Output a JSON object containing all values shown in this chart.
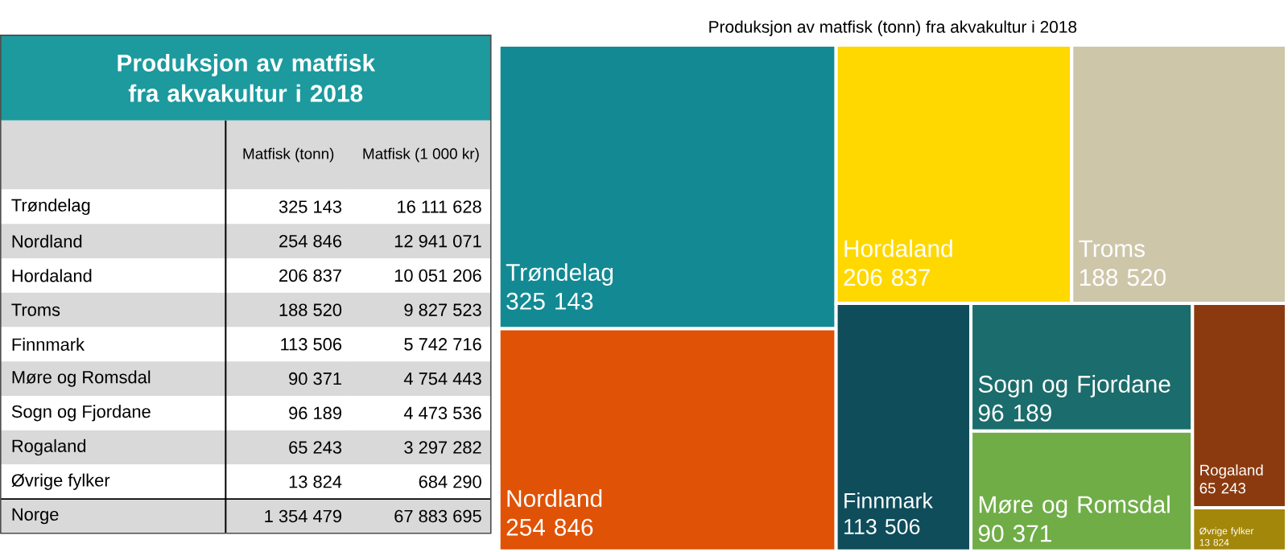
{
  "chart_data": [
    {
      "type": "other",
      "title": "Produksjon av matfisk fra akvakultur i 2018",
      "categories": [
        "Trøndelag",
        "Nordland",
        "Hordaland",
        "Troms",
        "Finnmark",
        "Møre og Romsdal",
        "Sogn og Fjordane",
        "Rogaland",
        "Øvrige fylker",
        "Norge"
      ],
      "series": [
        {
          "name": "Matfisk (tonn)",
          "colors": [
            "#ffffff",
            "#d9d9d9",
            "#ffffff",
            "#d9d9d9",
            "#ffffff",
            "#d9d9d9",
            "#ffffff",
            "#d9d9d9",
            "#ffffff",
            "#d9d9d9"
          ],
          "values": [
            325143,
            254846,
            206837,
            188520,
            113506,
            90371,
            96189,
            65243,
            13824,
            1354479
          ]
        },
        {
          "name": "Matfisk (1 000 kr)",
          "colors": [
            "#ffffff",
            "#d9d9d9",
            "#ffffff",
            "#d9d9d9",
            "#ffffff",
            "#d9d9d9",
            "#ffffff",
            "#d9d9d9",
            "#ffffff",
            "#d9d9d9"
          ],
          "values": [
            16111628,
            12941071,
            10051206,
            9827523,
            5742716,
            4754443,
            4473536,
            3297282,
            684290,
            67883695
          ]
        }
      ],
      "data_labels": true
    },
    {
      "type": "other",
      "title": "Produksjon av matfisk (tonn) fra akvakultur i 2018",
      "categories": [
        "Trøndelag",
        "Nordland",
        "Hordaland",
        "Troms",
        "Finnmark",
        "Sogn og Fjordane",
        "Møre og Romsdal",
        "Rogaland",
        "Øvrige fylker"
      ],
      "values": [
        325143,
        254846,
        206837,
        188520,
        113506,
        96189,
        90371,
        65243,
        13824
      ],
      "colors": [
        "#138a93",
        "#e05206",
        "#ffd800",
        "#cec6a9",
        "#0f4d5b",
        "#1b6c6c",
        "#70ad47",
        "#8b3a0f",
        "#a3870a"
      ],
      "data_labels": true
    }
  ]
}
